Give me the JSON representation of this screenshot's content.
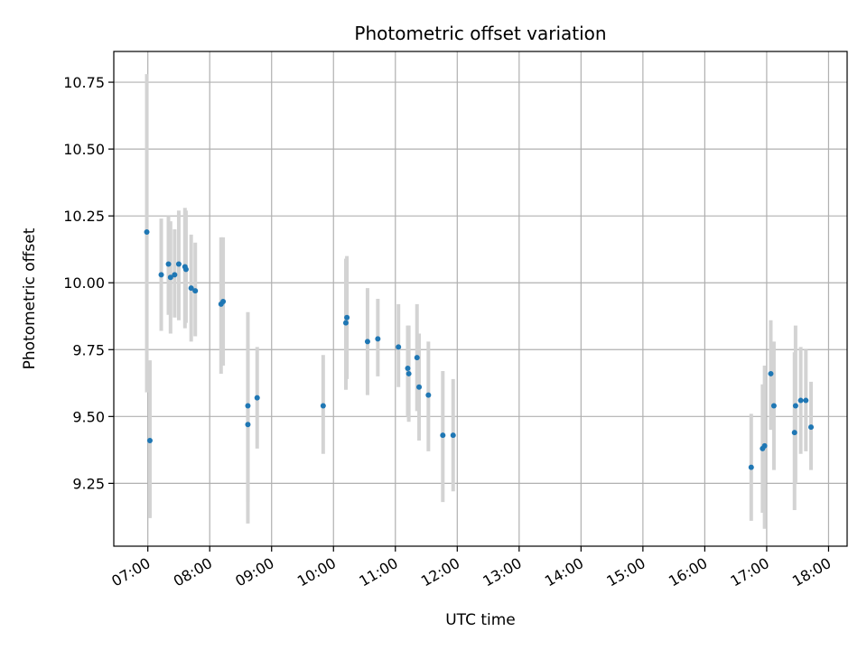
{
  "chart_data": {
    "type": "scatter",
    "title": "Photometric offset variation",
    "xlabel": "UTC time",
    "ylabel": "Photometric offset",
    "x_ticks": [
      "07:00",
      "08:00",
      "09:00",
      "10:00",
      "11:00",
      "12:00",
      "13:00",
      "14:00",
      "15:00",
      "16:00",
      "17:00",
      "18:00"
    ],
    "y_ticks": [
      "9.25",
      "9.50",
      "9.75",
      "10.00",
      "10.25",
      "10.50",
      "10.75"
    ],
    "xlim": [
      "06:27",
      "18:18"
    ],
    "ylim": [
      9.015,
      10.865
    ],
    "grid": true,
    "point_color": "#1f77b4",
    "errorbar_color": "#d3d3d3",
    "points": [
      {
        "t": "06:59",
        "y": 10.19,
        "lo": 9.59,
        "hi": 10.78
      },
      {
        "t": "07:02",
        "y": 9.41,
        "lo": 9.12,
        "hi": 9.71
      },
      {
        "t": "07:13",
        "y": 10.03,
        "lo": 9.82,
        "hi": 10.24
      },
      {
        "t": "07:20",
        "y": 10.07,
        "lo": 9.88,
        "hi": 10.25
      },
      {
        "t": "07:22",
        "y": 10.02,
        "lo": 9.81,
        "hi": 10.23
      },
      {
        "t": "07:26",
        "y": 10.03,
        "lo": 9.87,
        "hi": 10.2
      },
      {
        "t": "07:30",
        "y": 10.07,
        "lo": 9.86,
        "hi": 10.27
      },
      {
        "t": "07:36",
        "y": 10.06,
        "lo": 9.83,
        "hi": 10.28
      },
      {
        "t": "07:37",
        "y": 10.05,
        "lo": 9.85,
        "hi": 10.27
      },
      {
        "t": "07:42",
        "y": 9.98,
        "lo": 9.78,
        "hi": 10.18
      },
      {
        "t": "07:46",
        "y": 9.97,
        "lo": 9.8,
        "hi": 10.15
      },
      {
        "t": "08:11",
        "y": 9.92,
        "lo": 9.66,
        "hi": 10.17
      },
      {
        "t": "08:13",
        "y": 9.93,
        "lo": 9.69,
        "hi": 10.17
      },
      {
        "t": "08:37",
        "y": 9.47,
        "lo": 9.18,
        "hi": 9.77
      },
      {
        "t": "08:37",
        "y": 9.54,
        "lo": 9.1,
        "hi": 9.89
      },
      {
        "t": "08:46",
        "y": 9.57,
        "lo": 9.38,
        "hi": 9.76
      },
      {
        "t": "09:50",
        "y": 9.54,
        "lo": 9.36,
        "hi": 9.73
      },
      {
        "t": "10:12",
        "y": 9.85,
        "lo": 9.6,
        "hi": 10.09
      },
      {
        "t": "10:13",
        "y": 9.87,
        "lo": 9.64,
        "hi": 10.1
      },
      {
        "t": "10:33",
        "y": 9.78,
        "lo": 9.58,
        "hi": 9.98
      },
      {
        "t": "10:43",
        "y": 9.79,
        "lo": 9.65,
        "hi": 9.94
      },
      {
        "t": "11:03",
        "y": 9.76,
        "lo": 9.61,
        "hi": 9.92
      },
      {
        "t": "11:12",
        "y": 9.68,
        "lo": 9.5,
        "hi": 9.84
      },
      {
        "t": "11:13",
        "y": 9.66,
        "lo": 9.48,
        "hi": 9.84
      },
      {
        "t": "11:21",
        "y": 9.72,
        "lo": 9.52,
        "hi": 9.92
      },
      {
        "t": "11:23",
        "y": 9.61,
        "lo": 9.41,
        "hi": 9.81
      },
      {
        "t": "11:32",
        "y": 9.58,
        "lo": 9.37,
        "hi": 9.78
      },
      {
        "t": "11:46",
        "y": 9.43,
        "lo": 9.18,
        "hi": 9.67
      },
      {
        "t": "11:56",
        "y": 9.43,
        "lo": 9.22,
        "hi": 9.64
      },
      {
        "t": "16:45",
        "y": 9.31,
        "lo": 9.11,
        "hi": 9.51
      },
      {
        "t": "16:56",
        "y": 9.38,
        "lo": 9.14,
        "hi": 9.62
      },
      {
        "t": "16:58",
        "y": 9.39,
        "lo": 9.08,
        "hi": 9.69
      },
      {
        "t": "17:04",
        "y": 9.66,
        "lo": 9.45,
        "hi": 9.86
      },
      {
        "t": "17:07",
        "y": 9.54,
        "lo": 9.3,
        "hi": 9.78
      },
      {
        "t": "17:27",
        "y": 9.44,
        "lo": 9.15,
        "hi": 9.74
      },
      {
        "t": "17:28",
        "y": 9.54,
        "lo": 9.25,
        "hi": 9.84
      },
      {
        "t": "17:33",
        "y": 9.56,
        "lo": 9.36,
        "hi": 9.76
      },
      {
        "t": "17:38",
        "y": 9.56,
        "lo": 9.37,
        "hi": 9.75
      },
      {
        "t": "17:43",
        "y": 9.46,
        "lo": 9.3,
        "hi": 9.63
      }
    ]
  }
}
